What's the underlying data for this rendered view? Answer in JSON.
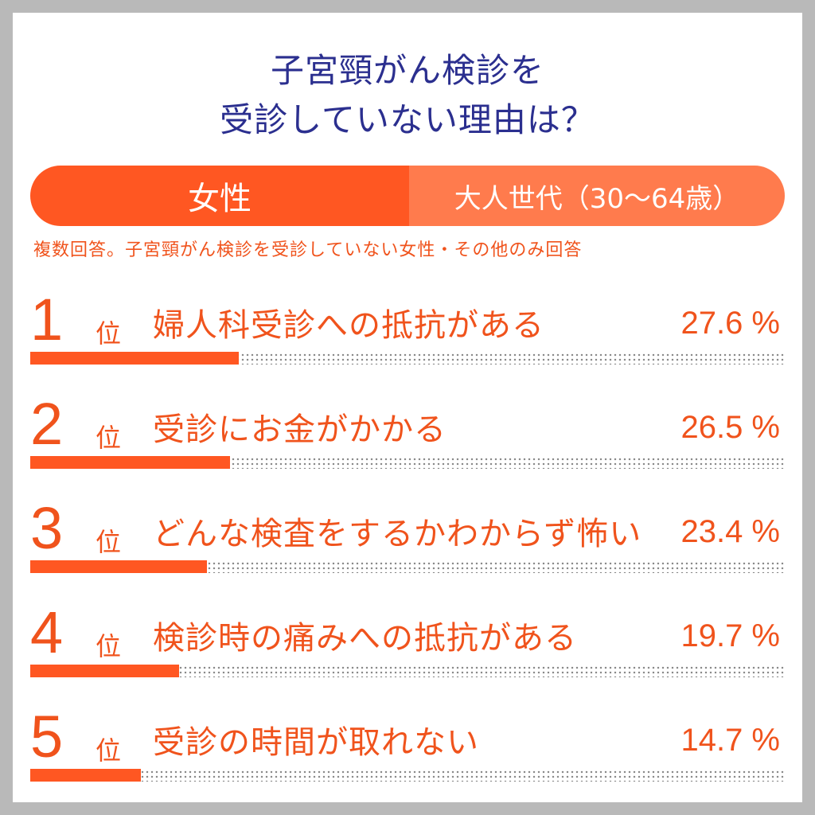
{
  "title": {
    "line1": "子宮頸がん検診を",
    "line2": "受診していない理由は？"
  },
  "filter": {
    "left_label": "女性",
    "right_label": "大人世代（30～64歳）"
  },
  "note": "複数回答。子宮頸がん検診を受診していない女性・その他のみ回答",
  "rank_suffix": "位",
  "colors": {
    "accent": "#ff5722",
    "accent_light": "#ff7b4d",
    "title": "#2b2f8f",
    "text": "#f0531c"
  },
  "chart_data": {
    "type": "bar",
    "orientation": "horizontal",
    "title": "子宮頸がん検診を受診していない理由は？",
    "unit": "%",
    "xlim": [
      0,
      100
    ],
    "categories": [
      "婦人科受診への抵抗がある",
      "受診にお金がかかる",
      "どんな検査をするかわからず怖い",
      "検診時の痛みへの抵抗がある",
      "受診の時間が取れない"
    ],
    "values": [
      27.6,
      26.5,
      23.4,
      19.7,
      14.7
    ],
    "ranks": [
      "1",
      "2",
      "3",
      "4",
      "5"
    ],
    "value_labels": [
      "27.6 %",
      "26.5 %",
      "23.4 %",
      "19.7 %",
      "14.7 %"
    ]
  }
}
